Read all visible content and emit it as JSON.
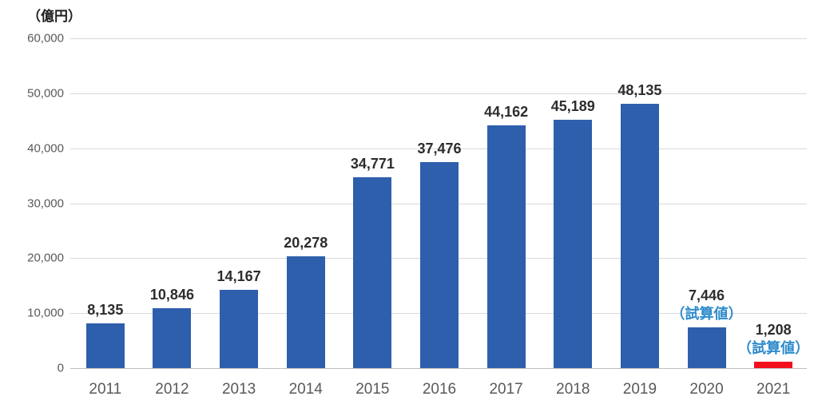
{
  "chart_data": {
    "type": "bar",
    "title": "",
    "xlabel": "",
    "ylabel": "（億円）",
    "categories": [
      "2011",
      "2012",
      "2013",
      "2014",
      "2015",
      "2016",
      "2017",
      "2018",
      "2019",
      "2020",
      "2021"
    ],
    "values": [
      8135,
      10846,
      14167,
      20278,
      34771,
      37476,
      44162,
      45189,
      48135,
      7446,
      1208
    ],
    "value_labels": [
      "8,135",
      "10,846",
      "14,167",
      "20,278",
      "34,771",
      "37,476",
      "44,162",
      "45,189",
      "48,135",
      "7,446",
      "1,208"
    ],
    "annotations": [
      "",
      "",
      "",
      "",
      "",
      "",
      "",
      "",
      "",
      "（試算値）",
      "（試算値）"
    ],
    "bar_colors": [
      "#2E5FAC",
      "#2E5FAC",
      "#2E5FAC",
      "#2E5FAC",
      "#2E5FAC",
      "#2E5FAC",
      "#2E5FAC",
      "#2E5FAC",
      "#2E5FAC",
      "#2E5FAC",
      "#F2101E"
    ],
    "ylim": [
      0,
      60000
    ],
    "y_ticks": [
      0,
      10000,
      20000,
      30000,
      40000,
      50000,
      60000
    ],
    "y_tick_labels": [
      "0",
      "10,000",
      "20,000",
      "30,000",
      "40,000",
      "50,000",
      "60,000"
    ],
    "grid": true,
    "legend": false
  },
  "colors": {
    "bar_default": "#2E5FAC",
    "bar_highlight": "#F2101E",
    "annotation_text": "#2E8BCC",
    "value_label_text": "#2D2D2D",
    "axis_text": "#595959",
    "gridline": "#D9D9D9"
  }
}
